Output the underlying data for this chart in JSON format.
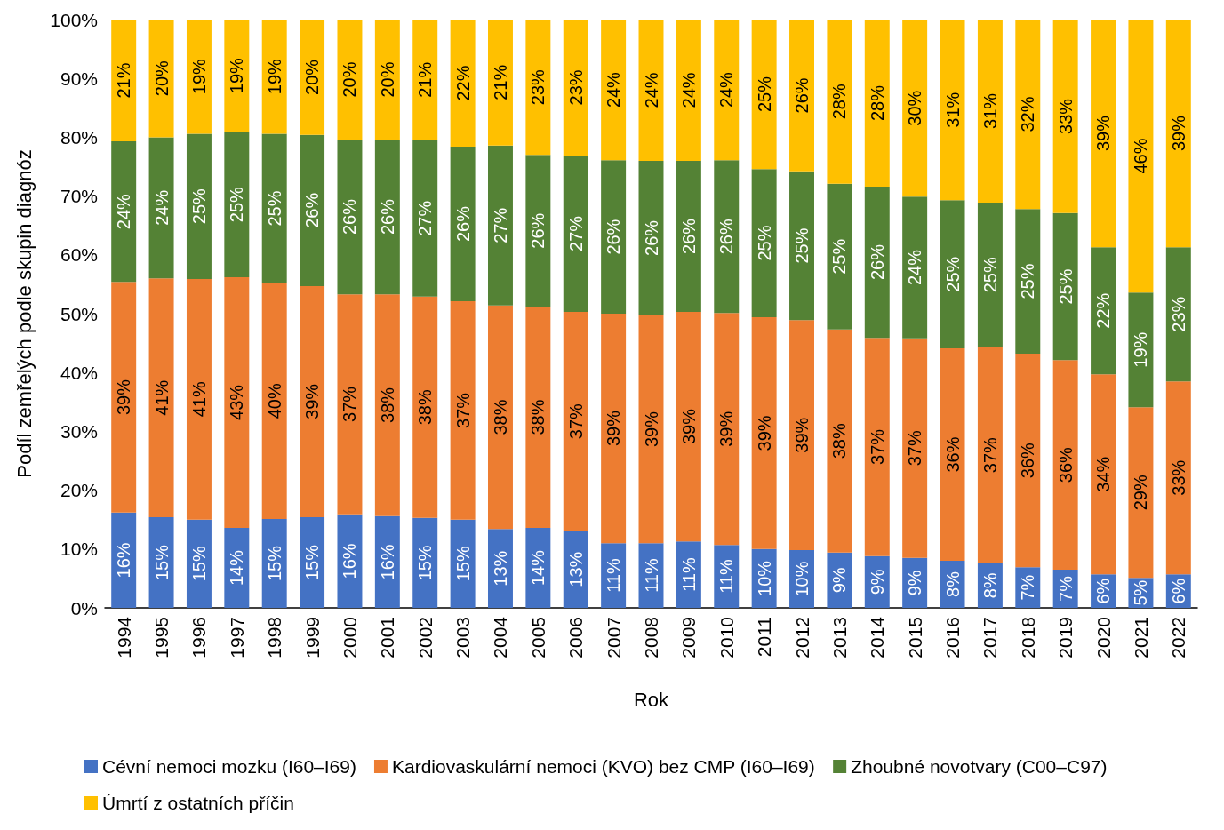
{
  "chart_data": {
    "type": "bar",
    "stacked": true,
    "xlabel": "Rok",
    "ylabel": "Podíl zemřelých podle skupin diagnóz",
    "categories": [
      "1994",
      "1995",
      "1996",
      "1997",
      "1998",
      "1999",
      "2000",
      "2001",
      "2002",
      "2003",
      "2004",
      "2005",
      "2006",
      "2007",
      "2008",
      "2009",
      "2010",
      "2011",
      "2012",
      "2013",
      "2014",
      "2015",
      "2016",
      "2017",
      "2018",
      "2019",
      "2020",
      "2021",
      "2022"
    ],
    "ylim": [
      0,
      100
    ],
    "yticks": [
      {
        "value": 0,
        "label": "0%"
      },
      {
        "value": 10,
        "label": "10%"
      },
      {
        "value": 20,
        "label": "20%"
      },
      {
        "value": 30,
        "label": "30%"
      },
      {
        "value": 40,
        "label": "40%"
      },
      {
        "value": 50,
        "label": "50%"
      },
      {
        "value": 60,
        "label": "60%"
      },
      {
        "value": 70,
        "label": "70%"
      },
      {
        "value": 80,
        "label": "80%"
      },
      {
        "value": 90,
        "label": "90%"
      },
      {
        "value": 100,
        "label": "100%"
      }
    ],
    "grid": false,
    "legend": "bottom",
    "series": [
      {
        "name": "Cévní nemoci mozku (I60–I69)",
        "color": "#4472c4",
        "values": [
          16.2,
          15.4,
          15.0,
          13.6,
          15.1,
          15.4,
          15.9,
          15.6,
          15.3,
          15.0,
          13.4,
          13.6,
          13.1,
          11.0,
          11.0,
          11.3,
          10.7,
          10.0,
          9.8,
          9.4,
          8.8,
          8.5,
          8.0,
          7.6,
          6.9,
          6.5,
          5.7,
          5.1,
          5.7
        ],
        "value_labels": [
          "16%",
          "15%",
          "15%",
          "14%",
          "15%",
          "15%",
          "16%",
          "16%",
          "15%",
          "15%",
          "13%",
          "14%",
          "13%",
          "11%",
          "11%",
          "11%",
          "11%",
          "10%",
          "10%",
          "9%",
          "9%",
          "9%",
          "8%",
          "8%",
          "7%",
          "7%",
          "6%",
          "5%",
          "6%"
        ]
      },
      {
        "name": "Kardiovaskulární nemoci (KVO) bez CMP (I60–I69)",
        "color": "#ed7d31",
        "values": [
          39.2,
          40.6,
          40.9,
          42.6,
          40.1,
          39.3,
          37.4,
          37.7,
          37.6,
          37.1,
          38.0,
          37.6,
          37.2,
          39.0,
          38.7,
          39.0,
          39.4,
          39.4,
          39.1,
          37.9,
          37.1,
          37.3,
          36.1,
          36.7,
          36.3,
          35.6,
          34.0,
          29.0,
          32.8
        ],
        "value_labels": [
          "39%",
          "41%",
          "41%",
          "43%",
          "40%",
          "39%",
          "37%",
          "38%",
          "38%",
          "37%",
          "38%",
          "38%",
          "37%",
          "39%",
          "39%",
          "39%",
          "39%",
          "39%",
          "39%",
          "38%",
          "37%",
          "37%",
          "36%",
          "37%",
          "36%",
          "36%",
          "34%",
          "29%",
          "33%"
        ]
      },
      {
        "name": "Zhoubné novotvary (C00–C97)",
        "color": "#548235",
        "values": [
          23.9,
          24.0,
          24.7,
          24.7,
          25.4,
          25.7,
          26.3,
          26.3,
          26.6,
          26.3,
          27.2,
          25.8,
          26.6,
          26.1,
          26.3,
          25.7,
          26.0,
          25.2,
          25.3,
          24.8,
          25.7,
          24.1,
          25.2,
          24.6,
          24.6,
          25.0,
          21.6,
          19.5,
          22.8
        ],
        "value_labels": [
          "24%",
          "24%",
          "25%",
          "25%",
          "25%",
          "26%",
          "26%",
          "26%",
          "27%",
          "26%",
          "27%",
          "26%",
          "27%",
          "26%",
          "26%",
          "26%",
          "26%",
          "25%",
          "25%",
          "25%",
          "26%",
          "24%",
          "25%",
          "25%",
          "25%",
          "25%",
          "22%",
          "19%",
          "23%"
        ]
      },
      {
        "name": "Úmrtí z ostatních příčin",
        "color": "#ffc000",
        "values": [
          20.7,
          20.0,
          19.4,
          19.1,
          19.4,
          19.6,
          20.4,
          20.4,
          20.5,
          21.6,
          21.4,
          23.0,
          23.1,
          23.9,
          24.0,
          24.0,
          23.9,
          25.4,
          25.8,
          27.9,
          28.4,
          30.1,
          30.7,
          31.1,
          32.2,
          32.9,
          38.7,
          46.4,
          38.7
        ],
        "value_labels": [
          "21%",
          "20%",
          "19%",
          "19%",
          "19%",
          "20%",
          "20%",
          "20%",
          "21%",
          "22%",
          "21%",
          "23%",
          "23%",
          "24%",
          "24%",
          "24%",
          "24%",
          "25%",
          "26%",
          "28%",
          "28%",
          "30%",
          "31%",
          "31%",
          "32%",
          "33%",
          "39%",
          "46%",
          "39%"
        ]
      }
    ]
  }
}
